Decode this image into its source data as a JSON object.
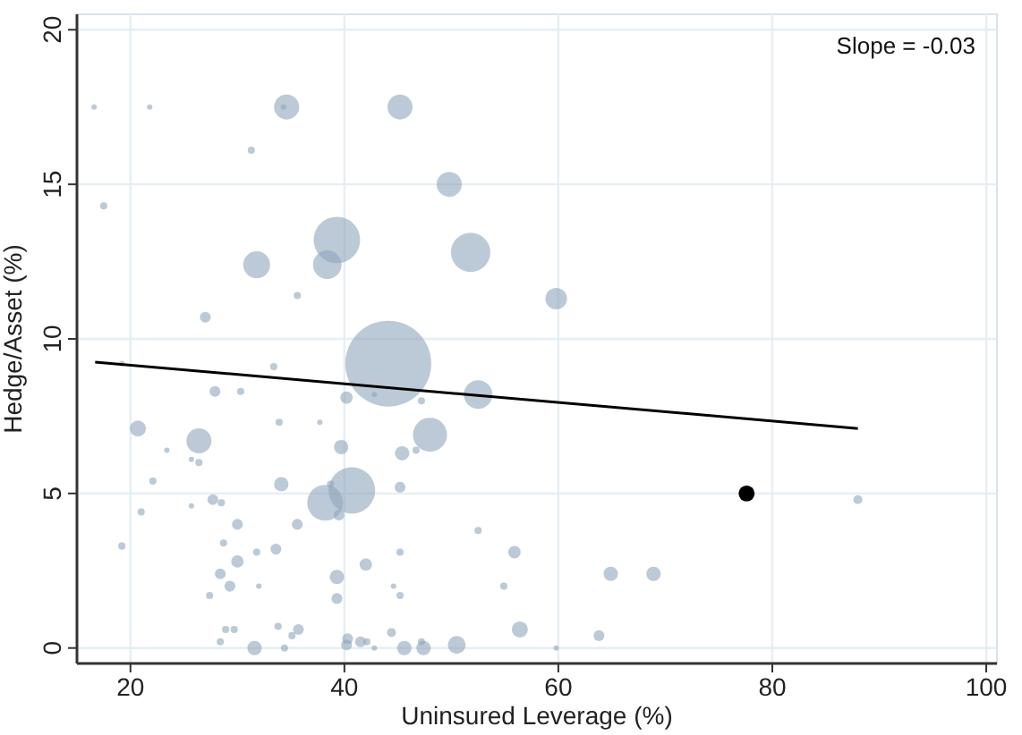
{
  "chart_data": {
    "type": "bubble",
    "xlabel": "Uninsured Leverage (%)",
    "ylabel": "Hedge/Asset (%)",
    "xlim": [
      15,
      101
    ],
    "ylim": [
      -0.5,
      20.5
    ],
    "xticks": [
      20,
      40,
      60,
      80,
      100
    ],
    "yticks": [
      0,
      5,
      10,
      15,
      20
    ],
    "grid": true,
    "annotations": [
      "Slope = -0.03"
    ],
    "series": [
      {
        "color": "#8fa5ba",
        "x": [
          16.6,
          21.8,
          34.6,
          34.3,
          45.2,
          31.3,
          49.8,
          17.5,
          39.3,
          51.8,
          31.8,
          38.4,
          35.6,
          27.0,
          59.8,
          44.1,
          19.2,
          33.4,
          27.9,
          30.3,
          40.2,
          42.8,
          47.2,
          52.5,
          33.9,
          37.7,
          20.7,
          48.0,
          26.4,
          39.7,
          23.4,
          45.4,
          46.7,
          25.7,
          26.4,
          22.1,
          34.1,
          40.7,
          45.2,
          38.2,
          38.7,
          27.7,
          28.5,
          25.7,
          21.0,
          39.5,
          30.0,
          35.6,
          52.5,
          19.2,
          28.7,
          31.8,
          33.6,
          45.2,
          30.0,
          42.0,
          28.4,
          39.3,
          29.3,
          32.0,
          44.6,
          27.4,
          45.2,
          39.3,
          28.9,
          29.7,
          33.8,
          35.7,
          35.1,
          28.4,
          31.6,
          34.4,
          40.3,
          40.2,
          41.5,
          42.1,
          42.8,
          44.4,
          45.6,
          47.2,
          47.4,
          50.5,
          56.4,
          55.9,
          54.9,
          64.9,
          68.9,
          63.8,
          59.8,
          88.0
        ],
        "values": [
          17.5,
          17.5,
          17.5,
          17.5,
          17.5,
          16.1,
          15.0,
          14.3,
          13.2,
          12.8,
          12.4,
          12.4,
          11.4,
          10.7,
          11.3,
          9.2,
          9.2,
          9.1,
          8.3,
          8.3,
          8.1,
          8.2,
          8.0,
          8.2,
          7.3,
          7.3,
          7.1,
          6.9,
          6.7,
          6.5,
          6.4,
          6.3,
          6.4,
          6.1,
          6.0,
          5.4,
          5.3,
          5.1,
          5.2,
          4.7,
          5.3,
          4.8,
          4.7,
          4.6,
          4.4,
          4.3,
          4.0,
          4.0,
          3.8,
          3.3,
          3.4,
          3.1,
          3.2,
          3.1,
          2.8,
          2.7,
          2.4,
          2.3,
          2.0,
          2.0,
          2.0,
          1.7,
          1.7,
          1.6,
          0.6,
          0.6,
          0.7,
          0.6,
          0.4,
          0.2,
          0.0,
          0.0,
          0.3,
          0.1,
          0.2,
          0.2,
          0.0,
          0.5,
          0.0,
          0.2,
          0.0,
          0.1,
          0.6,
          3.1,
          2.0,
          2.4,
          2.4,
          0.4,
          0.0,
          4.8
        ],
        "sizes": [
          0.004,
          0.004,
          0.085,
          0.004,
          0.085,
          0.007,
          0.085,
          0.007,
          0.293,
          0.21,
          0.098,
          0.111,
          0.007,
          0.016,
          0.063,
          1,
          0.004,
          0.007,
          0.016,
          0.007,
          0.021,
          0.004,
          0.007,
          0.111,
          0.007,
          0.004,
          0.035,
          0.157,
          0.085,
          0.028,
          0.004,
          0.028,
          0.007,
          0.004,
          0.007,
          0.007,
          0.028,
          0.293,
          0.016,
          0.174,
          0.007,
          0.016,
          0.007,
          0.004,
          0.007,
          0.016,
          0.016,
          0.016,
          0.007,
          0.007,
          0.007,
          0.007,
          0.016,
          0.007,
          0.021,
          0.021,
          0.016,
          0.028,
          0.016,
          0.004,
          0.004,
          0.007,
          0.007,
          0.016,
          0.007,
          0.007,
          0.007,
          0.016,
          0.007,
          0.007,
          0.028,
          0.007,
          0.016,
          0.016,
          0.016,
          0.007,
          0.004,
          0.011,
          0.028,
          0.007,
          0.028,
          0.043,
          0.035,
          0.021,
          0.007,
          0.028,
          0.028,
          0.016,
          0.004,
          0.011
        ]
      },
      {
        "color": "#000000",
        "x": [
          77.6
        ],
        "values": [
          5.0
        ],
        "sizes": [
          0.035
        ]
      },
      {
        "type": "line",
        "color": "#000000",
        "x": [
          16.7,
          88.0
        ],
        "values": [
          9.25,
          7.1
        ]
      }
    ]
  }
}
